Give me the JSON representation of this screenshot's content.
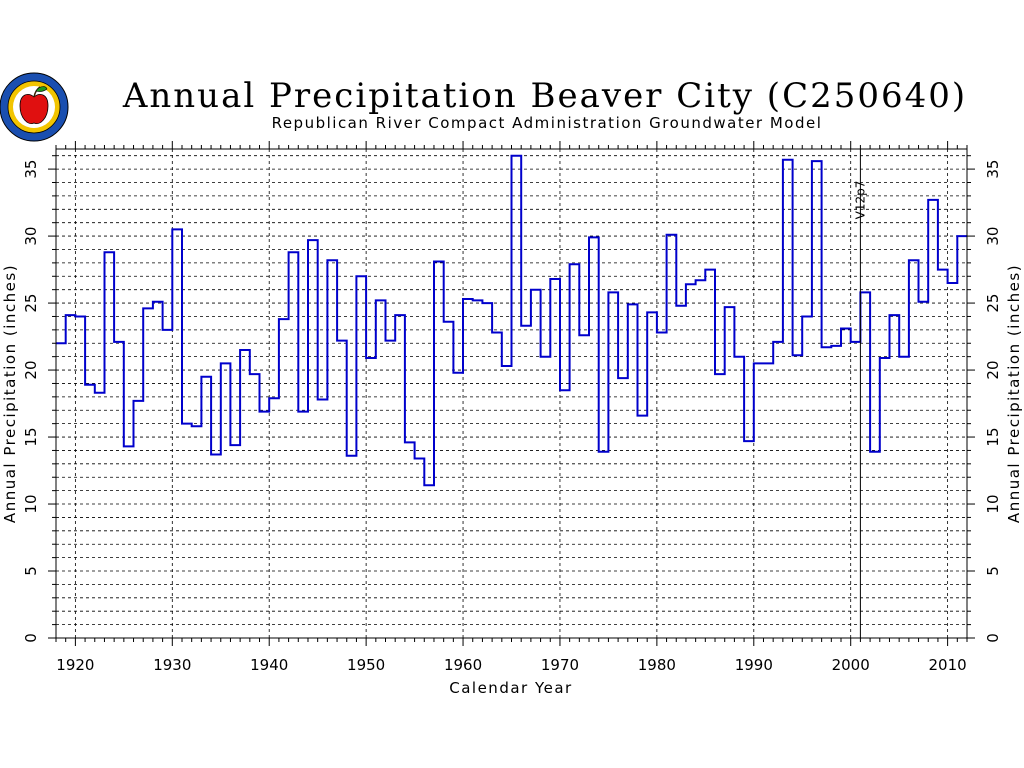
{
  "chart_data": {
    "type": "line",
    "step": true,
    "title": "Annual Precipitation Beaver City (C250640)",
    "subtitle": "Republican River Compact Administration Groundwater Model",
    "xlabel": "Calendar Year",
    "ylabel": "Annual Precipitation (inches)",
    "xlim": [
      1918,
      2012
    ],
    "ylim": [
      0,
      36.5
    ],
    "x_ticks": [
      1920,
      1930,
      1940,
      1950,
      1960,
      1970,
      1980,
      1990,
      2000,
      2010
    ],
    "y_ticks": [
      0,
      5,
      10,
      15,
      20,
      25,
      30,
      35
    ],
    "grid": true,
    "line_color": "#0000cc",
    "annotation": {
      "x": 2001,
      "text": "V12p7"
    },
    "series": [
      {
        "x": [
          1918,
          1919,
          1920,
          1921,
          1922,
          1923,
          1924,
          1925,
          1926,
          1927,
          1928,
          1929,
          1930,
          1931,
          1932,
          1933,
          1934,
          1935,
          1936,
          1937,
          1938,
          1939,
          1940,
          1941,
          1942,
          1943,
          1944,
          1945,
          1946,
          1947,
          1948,
          1949,
          1950,
          1951,
          1952,
          1953,
          1954,
          1955,
          1956,
          1957,
          1958,
          1959,
          1960,
          1961,
          1962,
          1963,
          1964,
          1965,
          1966,
          1967,
          1968,
          1969,
          1970,
          1971,
          1972,
          1973,
          1974,
          1975,
          1976,
          1977,
          1978,
          1979,
          1980,
          1981,
          1982,
          1983,
          1984,
          1985,
          1986,
          1987,
          1988,
          1989,
          1990,
          1991,
          1992,
          1993,
          1994,
          1995,
          1996,
          1997,
          1998,
          1999,
          2000,
          2001,
          2002,
          2003,
          2004,
          2005,
          2006,
          2007,
          2008,
          2009,
          2010,
          2011
        ],
        "values": [
          22.0,
          24.1,
          24.0,
          18.9,
          18.3,
          28.8,
          22.1,
          14.3,
          17.7,
          24.6,
          25.1,
          23.0,
          30.5,
          16.0,
          15.8,
          19.5,
          13.7,
          20.5,
          14.4,
          21.5,
          19.7,
          16.9,
          17.9,
          23.8,
          28.8,
          16.9,
          29.7,
          17.8,
          28.2,
          22.2,
          13.6,
          27.0,
          20.9,
          25.2,
          22.2,
          24.1,
          14.6,
          13.4,
          11.4,
          28.1,
          23.6,
          19.8,
          25.3,
          25.2,
          25.0,
          22.8,
          20.3,
          36.0,
          23.3,
          26.0,
          21.0,
          26.8,
          18.5,
          27.9,
          22.6,
          29.9,
          13.9,
          25.8,
          19.4,
          24.9,
          16.6,
          24.3,
          22.8,
          30.1,
          24.8,
          26.4,
          26.7,
          27.5,
          19.7,
          24.7,
          21.0,
          14.7,
          20.5,
          20.5,
          22.1,
          35.7,
          21.1,
          24.0,
          35.6,
          21.7,
          21.8,
          23.1,
          22.1,
          25.8,
          13.9,
          20.9,
          24.1,
          21.0,
          28.2,
          25.1,
          32.7,
          27.5,
          26.5,
          30.0
        ]
      }
    ]
  }
}
